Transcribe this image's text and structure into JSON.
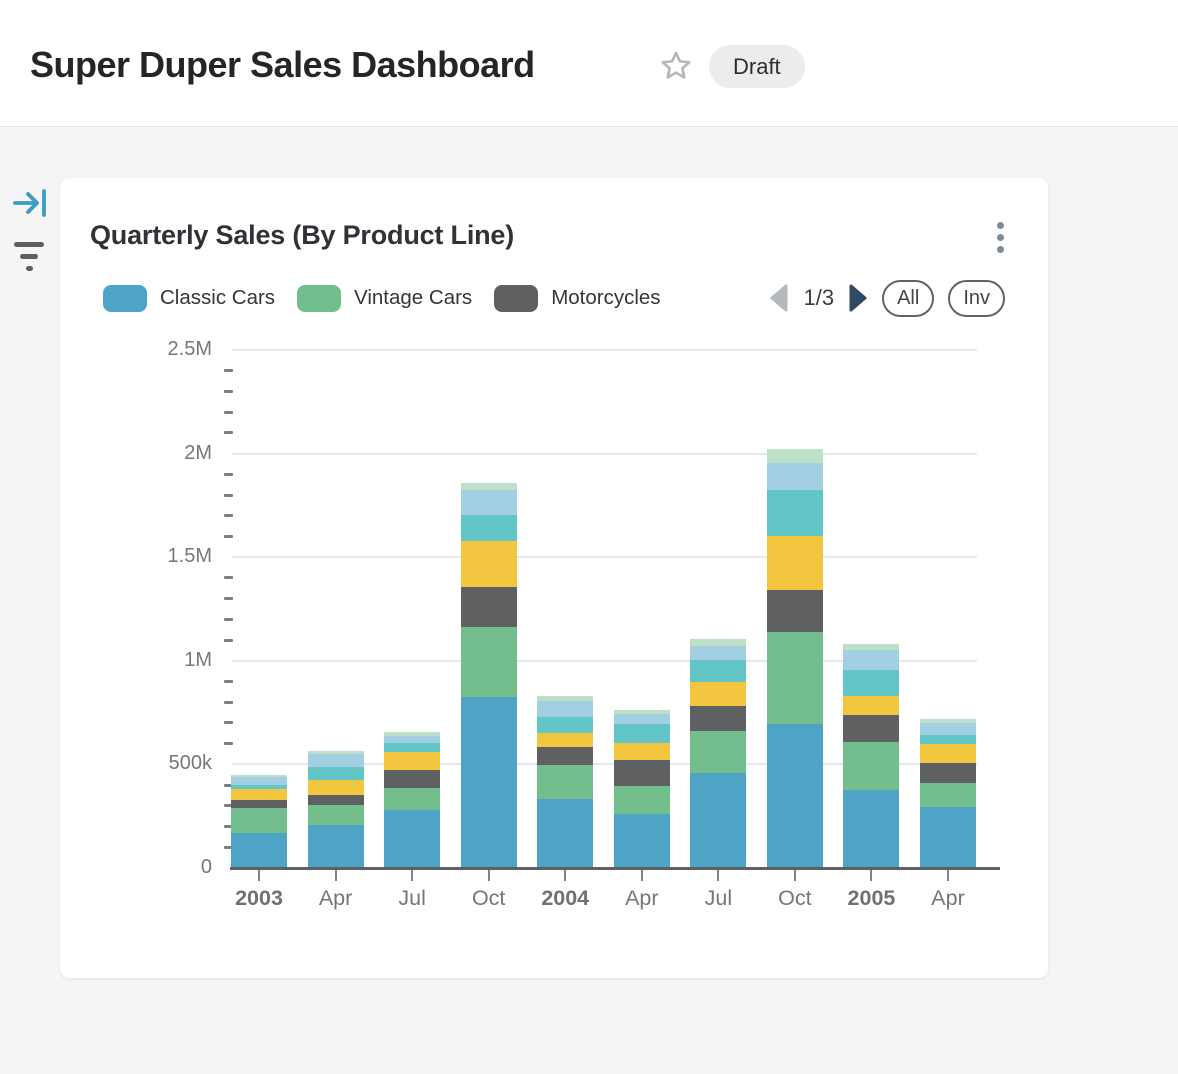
{
  "header": {
    "title": "Super Duper Sales Dashboard",
    "status_badge": "Draft"
  },
  "rail": {
    "icons": [
      {
        "name": "collapse-panel-arrow-icon",
        "color": "#3b9dc1"
      },
      {
        "name": "filter-icon",
        "color": "#5d6063"
      }
    ]
  },
  "card": {
    "title": "Quarterly Sales (By Product Line)",
    "menu_icon": "kebab-menu-icon",
    "legend": {
      "pagination": {
        "current": "1/3",
        "prev_enabled": false,
        "next_enabled": true,
        "prev_color": "#b5b9bb",
        "next_color": "#2e4b63"
      },
      "buttons": [
        {
          "label": "All"
        },
        {
          "label": "Inv"
        }
      ]
    }
  },
  "chart_data": {
    "type": "bar",
    "stacked": true,
    "title": "Quarterly Sales (By Product Line)",
    "xlabel": "",
    "ylabel": "",
    "ylim": [
      0,
      2500000
    ],
    "grid": "horizontal-major",
    "minor_tick_step": 100000,
    "legend_position": "top",
    "y_ticks": [
      {
        "label": "2.5M",
        "value": 2500000
      },
      {
        "label": "2M",
        "value": 2000000
      },
      {
        "label": "1.5M",
        "value": 1500000
      },
      {
        "label": "1M",
        "value": 1000000
      },
      {
        "label": "500k",
        "value": 500000
      },
      {
        "label": "0",
        "value": 0
      }
    ],
    "categories": [
      {
        "label": "2003",
        "bold": true
      },
      {
        "label": "Apr",
        "bold": false
      },
      {
        "label": "Jul",
        "bold": false
      },
      {
        "label": "Oct",
        "bold": false
      },
      {
        "label": "2004",
        "bold": true
      },
      {
        "label": "Apr",
        "bold": false
      },
      {
        "label": "Jul",
        "bold": false
      },
      {
        "label": "Oct",
        "bold": false
      },
      {
        "label": "2005",
        "bold": true
      },
      {
        "label": "Apr",
        "bold": false
      }
    ],
    "series": [
      {
        "name": "Classic Cars",
        "legend_visible": true,
        "color": "#4da4c6",
        "values": [
          169000,
          209000,
          281000,
          824000,
          332000,
          263000,
          458000,
          693000,
          376000,
          295000
        ]
      },
      {
        "name": "Vintage Cars",
        "legend_visible": true,
        "color": "#72be8c",
        "values": [
          120000,
          96000,
          107000,
          341000,
          163000,
          131000,
          202000,
          444000,
          230000,
          117000
        ]
      },
      {
        "name": "Motorcycles",
        "legend_visible": true,
        "color": "#5e6062",
        "values": [
          40000,
          45000,
          85000,
          193000,
          88000,
          125000,
          121000,
          206000,
          134000,
          97000
        ]
      },
      {
        "name": "",
        "legend_visible": false,
        "color": "#f3c640",
        "values": [
          52000,
          76000,
          85000,
          220000,
          68000,
          84000,
          117000,
          259000,
          92000,
          91000
        ]
      },
      {
        "name": "",
        "legend_visible": false,
        "color": "#62c5c7",
        "values": [
          21000,
          61000,
          43000,
          128000,
          77000,
          93000,
          105000,
          223000,
          123000,
          43000
        ]
      },
      {
        "name": "",
        "legend_visible": false,
        "color": "#a3cfe2",
        "values": [
          35000,
          63000,
          37000,
          116000,
          80000,
          45000,
          70000,
          130000,
          96000,
          57000
        ]
      },
      {
        "name": "",
        "legend_visible": false,
        "color": "#bee0c8",
        "values": [
          10000,
          16000,
          16000,
          36000,
          24000,
          22000,
          32000,
          68000,
          29000,
          19000
        ]
      }
    ]
  }
}
